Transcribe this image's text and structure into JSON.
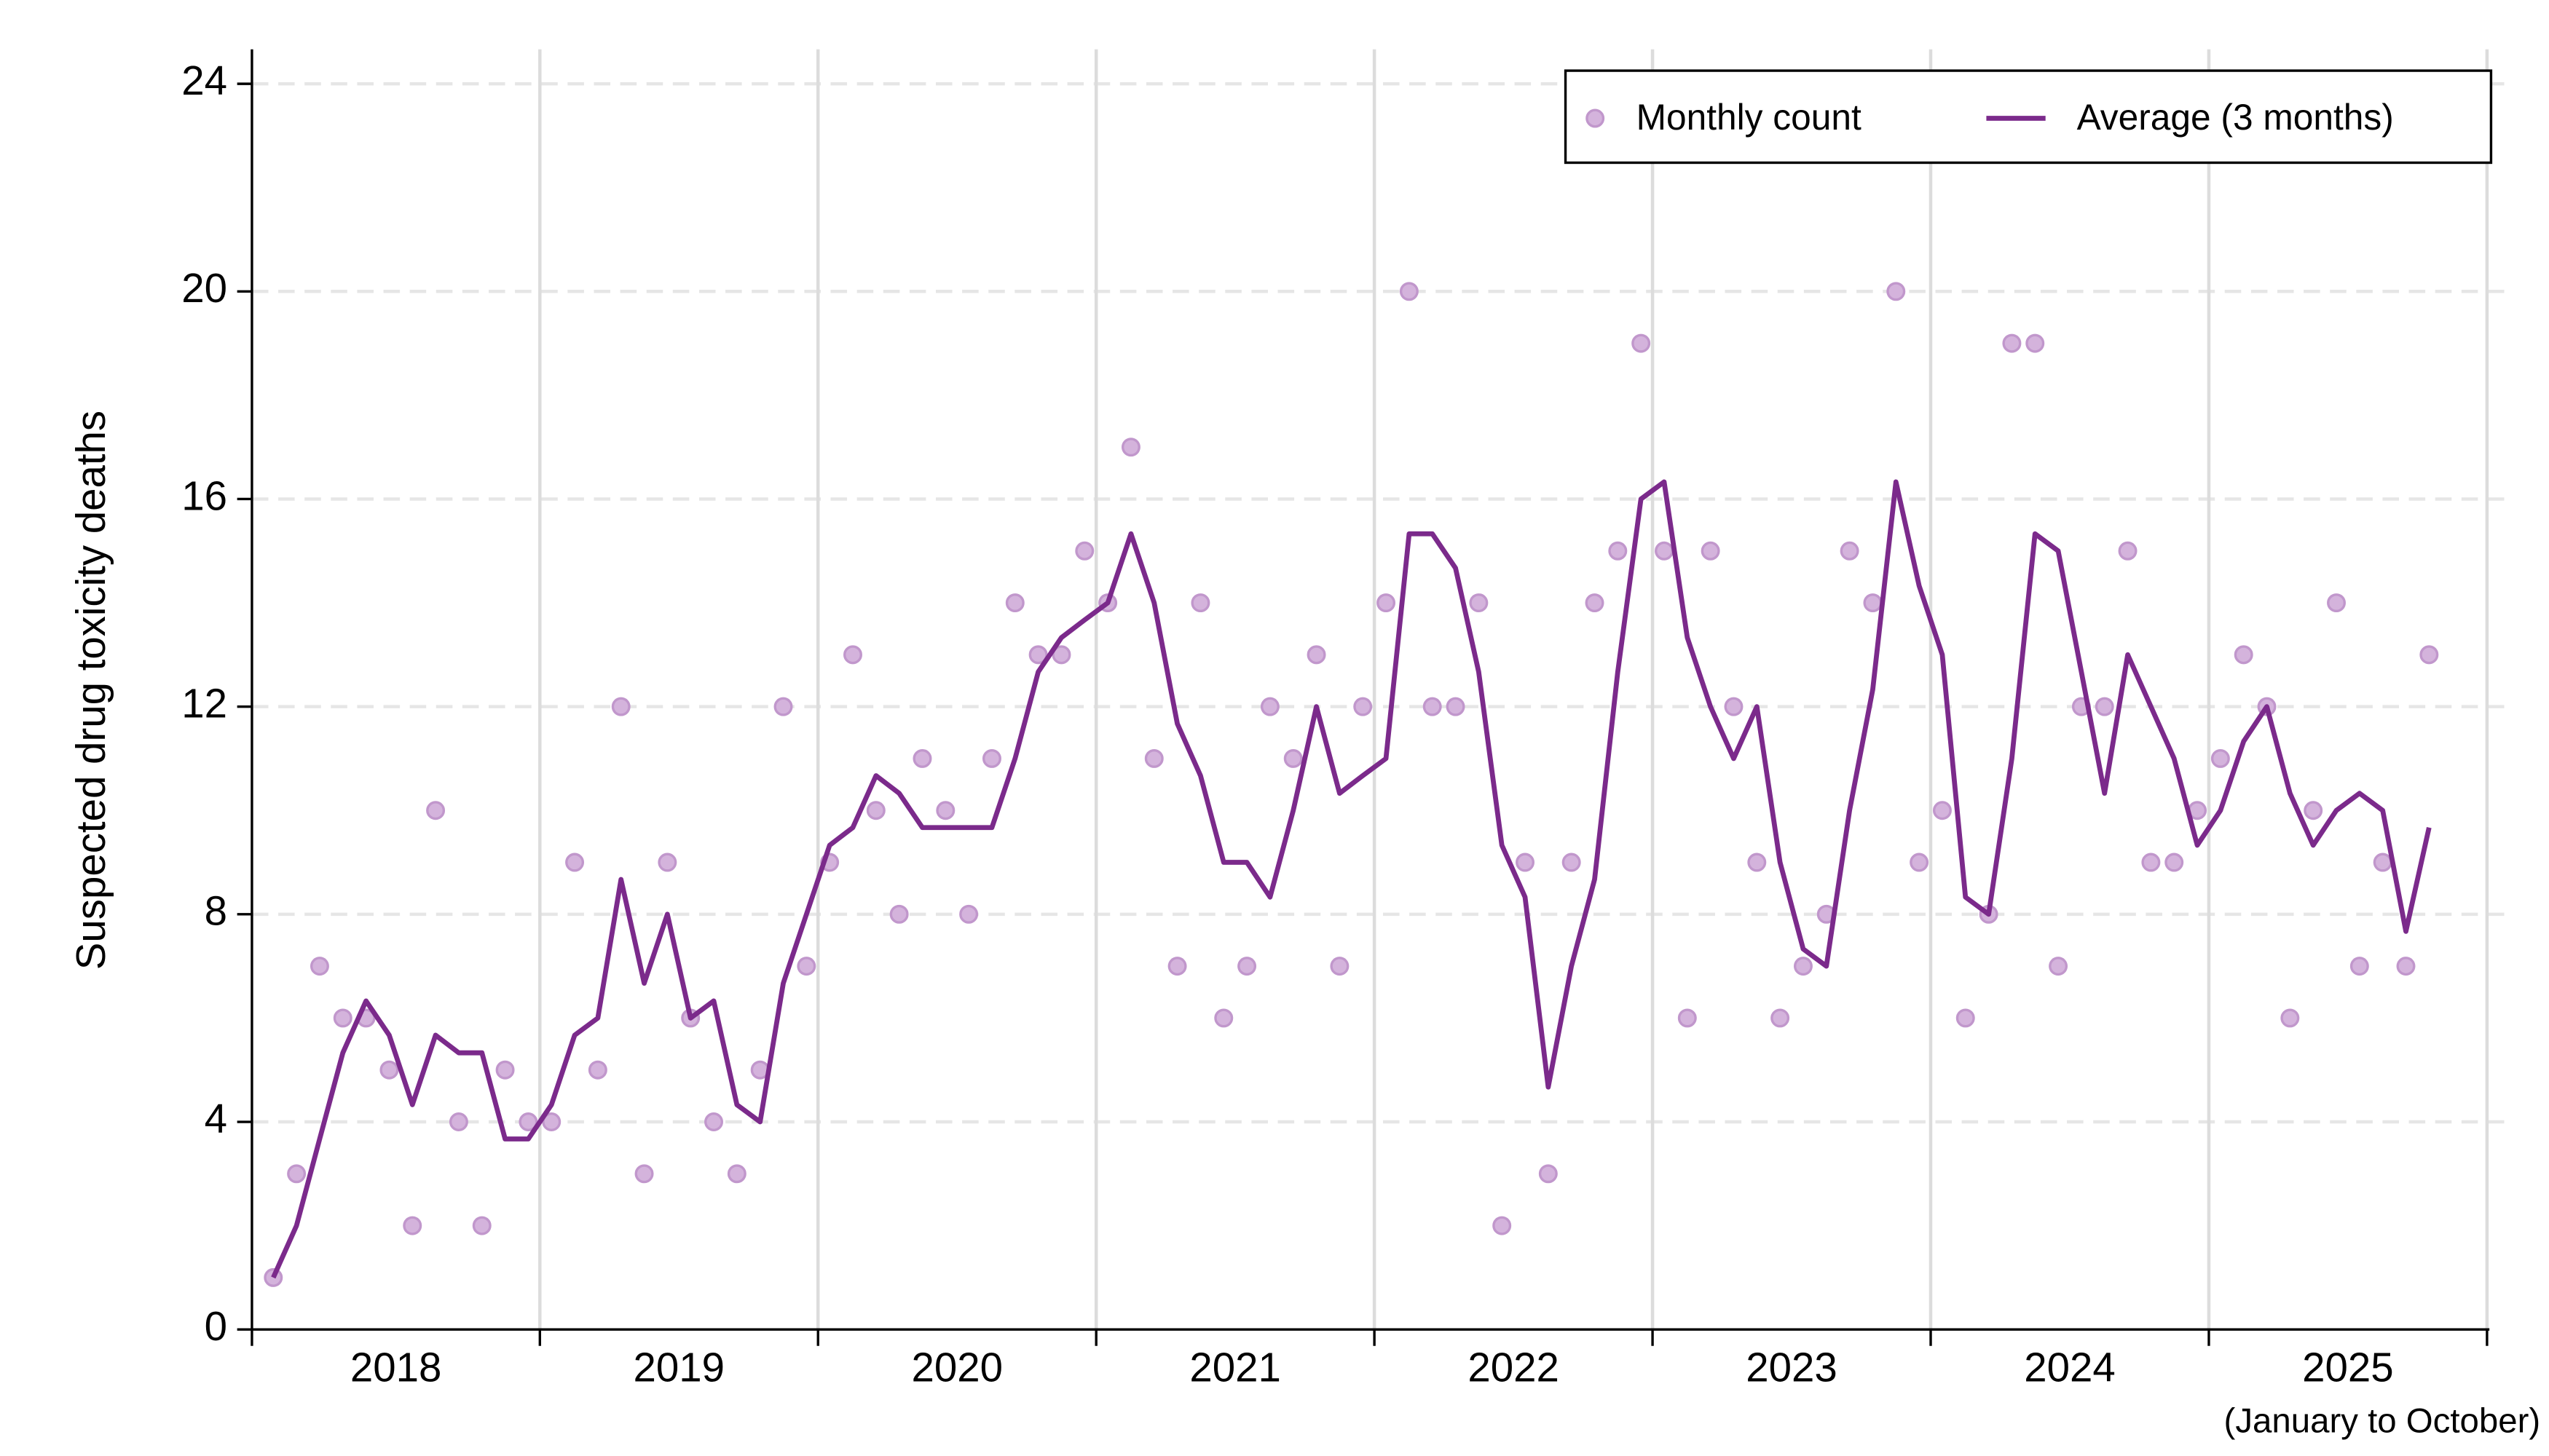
{
  "chart_data": {
    "type": "line",
    "y_label": "Suspected drug toxicity deaths",
    "x_note": "(January to October)",
    "categories": [
      null,
      null,
      null,
      null,
      null,
      null,
      null,
      null,
      null,
      null,
      null,
      null,
      null,
      null,
      null,
      null,
      null,
      null,
      null,
      null,
      null,
      null,
      null,
      null,
      null,
      null,
      null,
      null,
      null,
      null,
      null,
      null,
      null,
      null,
      null,
      null,
      null,
      null,
      null,
      null,
      null,
      null,
      null,
      null,
      null,
      null,
      null,
      null,
      null,
      null,
      null,
      null,
      null,
      null,
      null,
      null,
      null,
      null,
      null,
      null,
      null,
      null,
      null,
      null,
      null,
      null,
      null,
      null,
      null,
      null,
      null,
      null,
      null,
      null,
      null,
      null,
      null,
      null,
      null,
      null,
      null,
      null,
      null,
      null,
      null,
      null,
      null,
      null,
      null,
      null,
      null,
      null,
      null,
      null
    ],
    "year_labels": [
      "2018",
      "2019",
      "2020",
      "2021",
      "2022",
      "2023",
      "2024",
      "2025"
    ],
    "series": [
      {
        "name": "Monthly count",
        "mark": "point",
        "color": "#d4b3dc",
        "values": [
          1,
          3,
          7,
          6,
          6,
          5,
          2,
          10,
          4,
          2,
          5,
          4,
          4,
          9,
          5,
          12,
          3,
          9,
          6,
          4,
          3,
          5,
          12,
          7,
          9,
          13,
          10,
          8,
          11,
          10,
          8,
          11,
          14,
          13,
          13,
          15,
          14,
          17,
          11,
          7,
          14,
          6,
          7,
          12,
          11,
          13,
          7,
          12,
          14,
          20,
          12,
          12,
          14,
          2,
          9,
          3,
          9,
          14,
          15,
          19,
          15,
          6,
          15,
          12,
          9,
          6,
          7,
          8,
          15,
          14,
          20,
          9,
          10,
          6,
          8,
          19,
          19,
          7,
          12,
          12,
          15,
          9,
          9,
          10,
          11,
          13,
          12,
          6,
          10,
          14,
          7,
          9,
          7,
          13
        ]
      },
      {
        "name": "Average (3 months)",
        "mark": "line",
        "color": "#7b2a8b",
        "values": [
          1,
          2,
          3.67,
          5.33,
          6.33,
          5.67,
          4.33,
          5.67,
          5.33,
          5.33,
          3.67,
          3.67,
          4.33,
          5.67,
          6,
          8.67,
          6.67,
          8,
          6,
          6.33,
          4.33,
          4,
          6.67,
          8,
          9.33,
          9.67,
          10.67,
          10.33,
          9.67,
          9.67,
          9.67,
          9.67,
          11,
          12.67,
          13.33,
          13.67,
          14,
          15.33,
          14,
          11.67,
          10.67,
          9,
          9,
          8.33,
          10,
          12,
          10.33,
          10.67,
          11,
          15.33,
          15.33,
          14.67,
          12.67,
          9.33,
          8.33,
          4.67,
          7,
          8.67,
          12.67,
          16,
          16.33,
          13.33,
          12,
          11,
          12,
          9,
          7.33,
          7,
          10,
          12.33,
          16.33,
          14.33,
          13,
          8.33,
          8,
          11,
          15.33,
          15,
          12.67,
          10.33,
          13,
          12,
          11,
          9.33,
          10,
          11.33,
          12,
          10.33,
          9.33,
          10,
          10.33,
          10,
          7.67,
          9.67
        ]
      }
    ],
    "ylim": [
      0,
      24
    ],
    "yticks": [
      0,
      4,
      8,
      12,
      16,
      20,
      24
    ],
    "grid": true,
    "legend": "top-right"
  }
}
